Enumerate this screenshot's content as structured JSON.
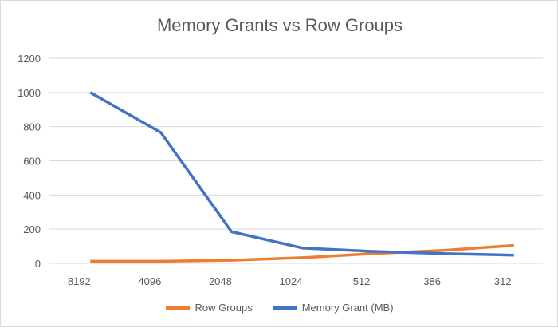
{
  "chart_data": {
    "type": "line",
    "title": "Memory Grants vs Row Groups",
    "categories": [
      "8192",
      "4096",
      "2048",
      "1024",
      "512",
      "386",
      "312"
    ],
    "ylim": [
      0,
      1200
    ],
    "yticks": [
      0,
      200,
      400,
      600,
      800,
      1000,
      1200
    ],
    "grid": true,
    "legend": "bottom",
    "series": [
      {
        "name": "Row Groups",
        "color": "#ED7D31",
        "values": [
          12,
          12,
          18,
          33,
          57,
          76,
          105
        ]
      },
      {
        "name": "Memory Grant (MB)",
        "color": "#4472C4",
        "values": [
          1000,
          765,
          185,
          90,
          70,
          57,
          48
        ]
      }
    ]
  }
}
